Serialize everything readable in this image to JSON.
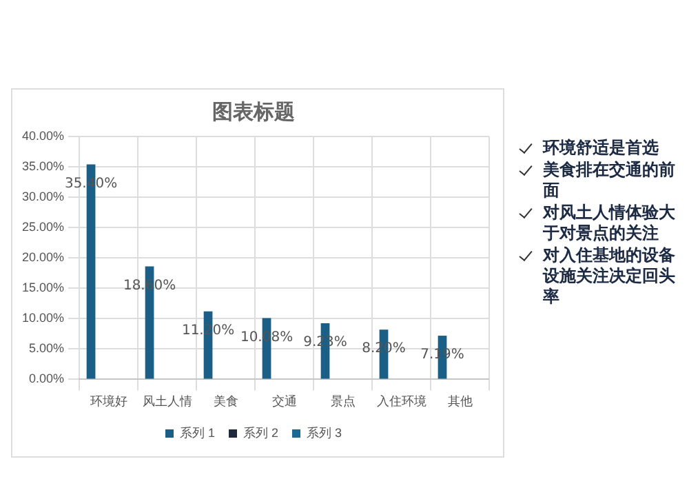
{
  "chart_data": {
    "type": "bar",
    "title": "图表标题",
    "categories": [
      "环境好",
      "风土人情",
      "美食",
      "交通",
      "景点",
      "入住环境",
      "其他"
    ],
    "series": [
      {
        "name": "系列 1",
        "color": "#1b5e86",
        "values": [
          35.4,
          18.6,
          11.2,
          10.08,
          9.23,
          8.2,
          7.19
        ],
        "value_labels": [
          "35.40%",
          "18.60%",
          "11.20%",
          "10.08%",
          "9.23%",
          "8.20%",
          "7.19%"
        ]
      },
      {
        "name": "系列 2",
        "color": "#1f2a3c",
        "values": [
          null,
          null,
          null,
          null,
          null,
          null,
          null
        ]
      },
      {
        "name": "系列 3",
        "color": "#1b6a95",
        "values": [
          null,
          null,
          null,
          null,
          null,
          null,
          null
        ]
      }
    ],
    "ylim": [
      0,
      40
    ],
    "yticks": [
      {
        "value": 0,
        "label": "0.00%"
      },
      {
        "value": 5,
        "label": "5.00%"
      },
      {
        "value": 10,
        "label": "10.00%"
      },
      {
        "value": 15,
        "label": "15.00%"
      },
      {
        "value": 20,
        "label": "20.00%"
      },
      {
        "value": 25,
        "label": "25.00%"
      },
      {
        "value": 30,
        "label": "30.00%"
      },
      {
        "value": 35,
        "label": "35.00%"
      },
      {
        "value": 40,
        "label": "40.00%"
      }
    ],
    "grid": true,
    "legend": "bottom",
    "annotations": [
      "环境舒适是首选",
      "美食排在交通的前面",
      "对风土人情体验大于对景点的关注",
      "对入住基地的设备设施关注决定回头率"
    ]
  }
}
